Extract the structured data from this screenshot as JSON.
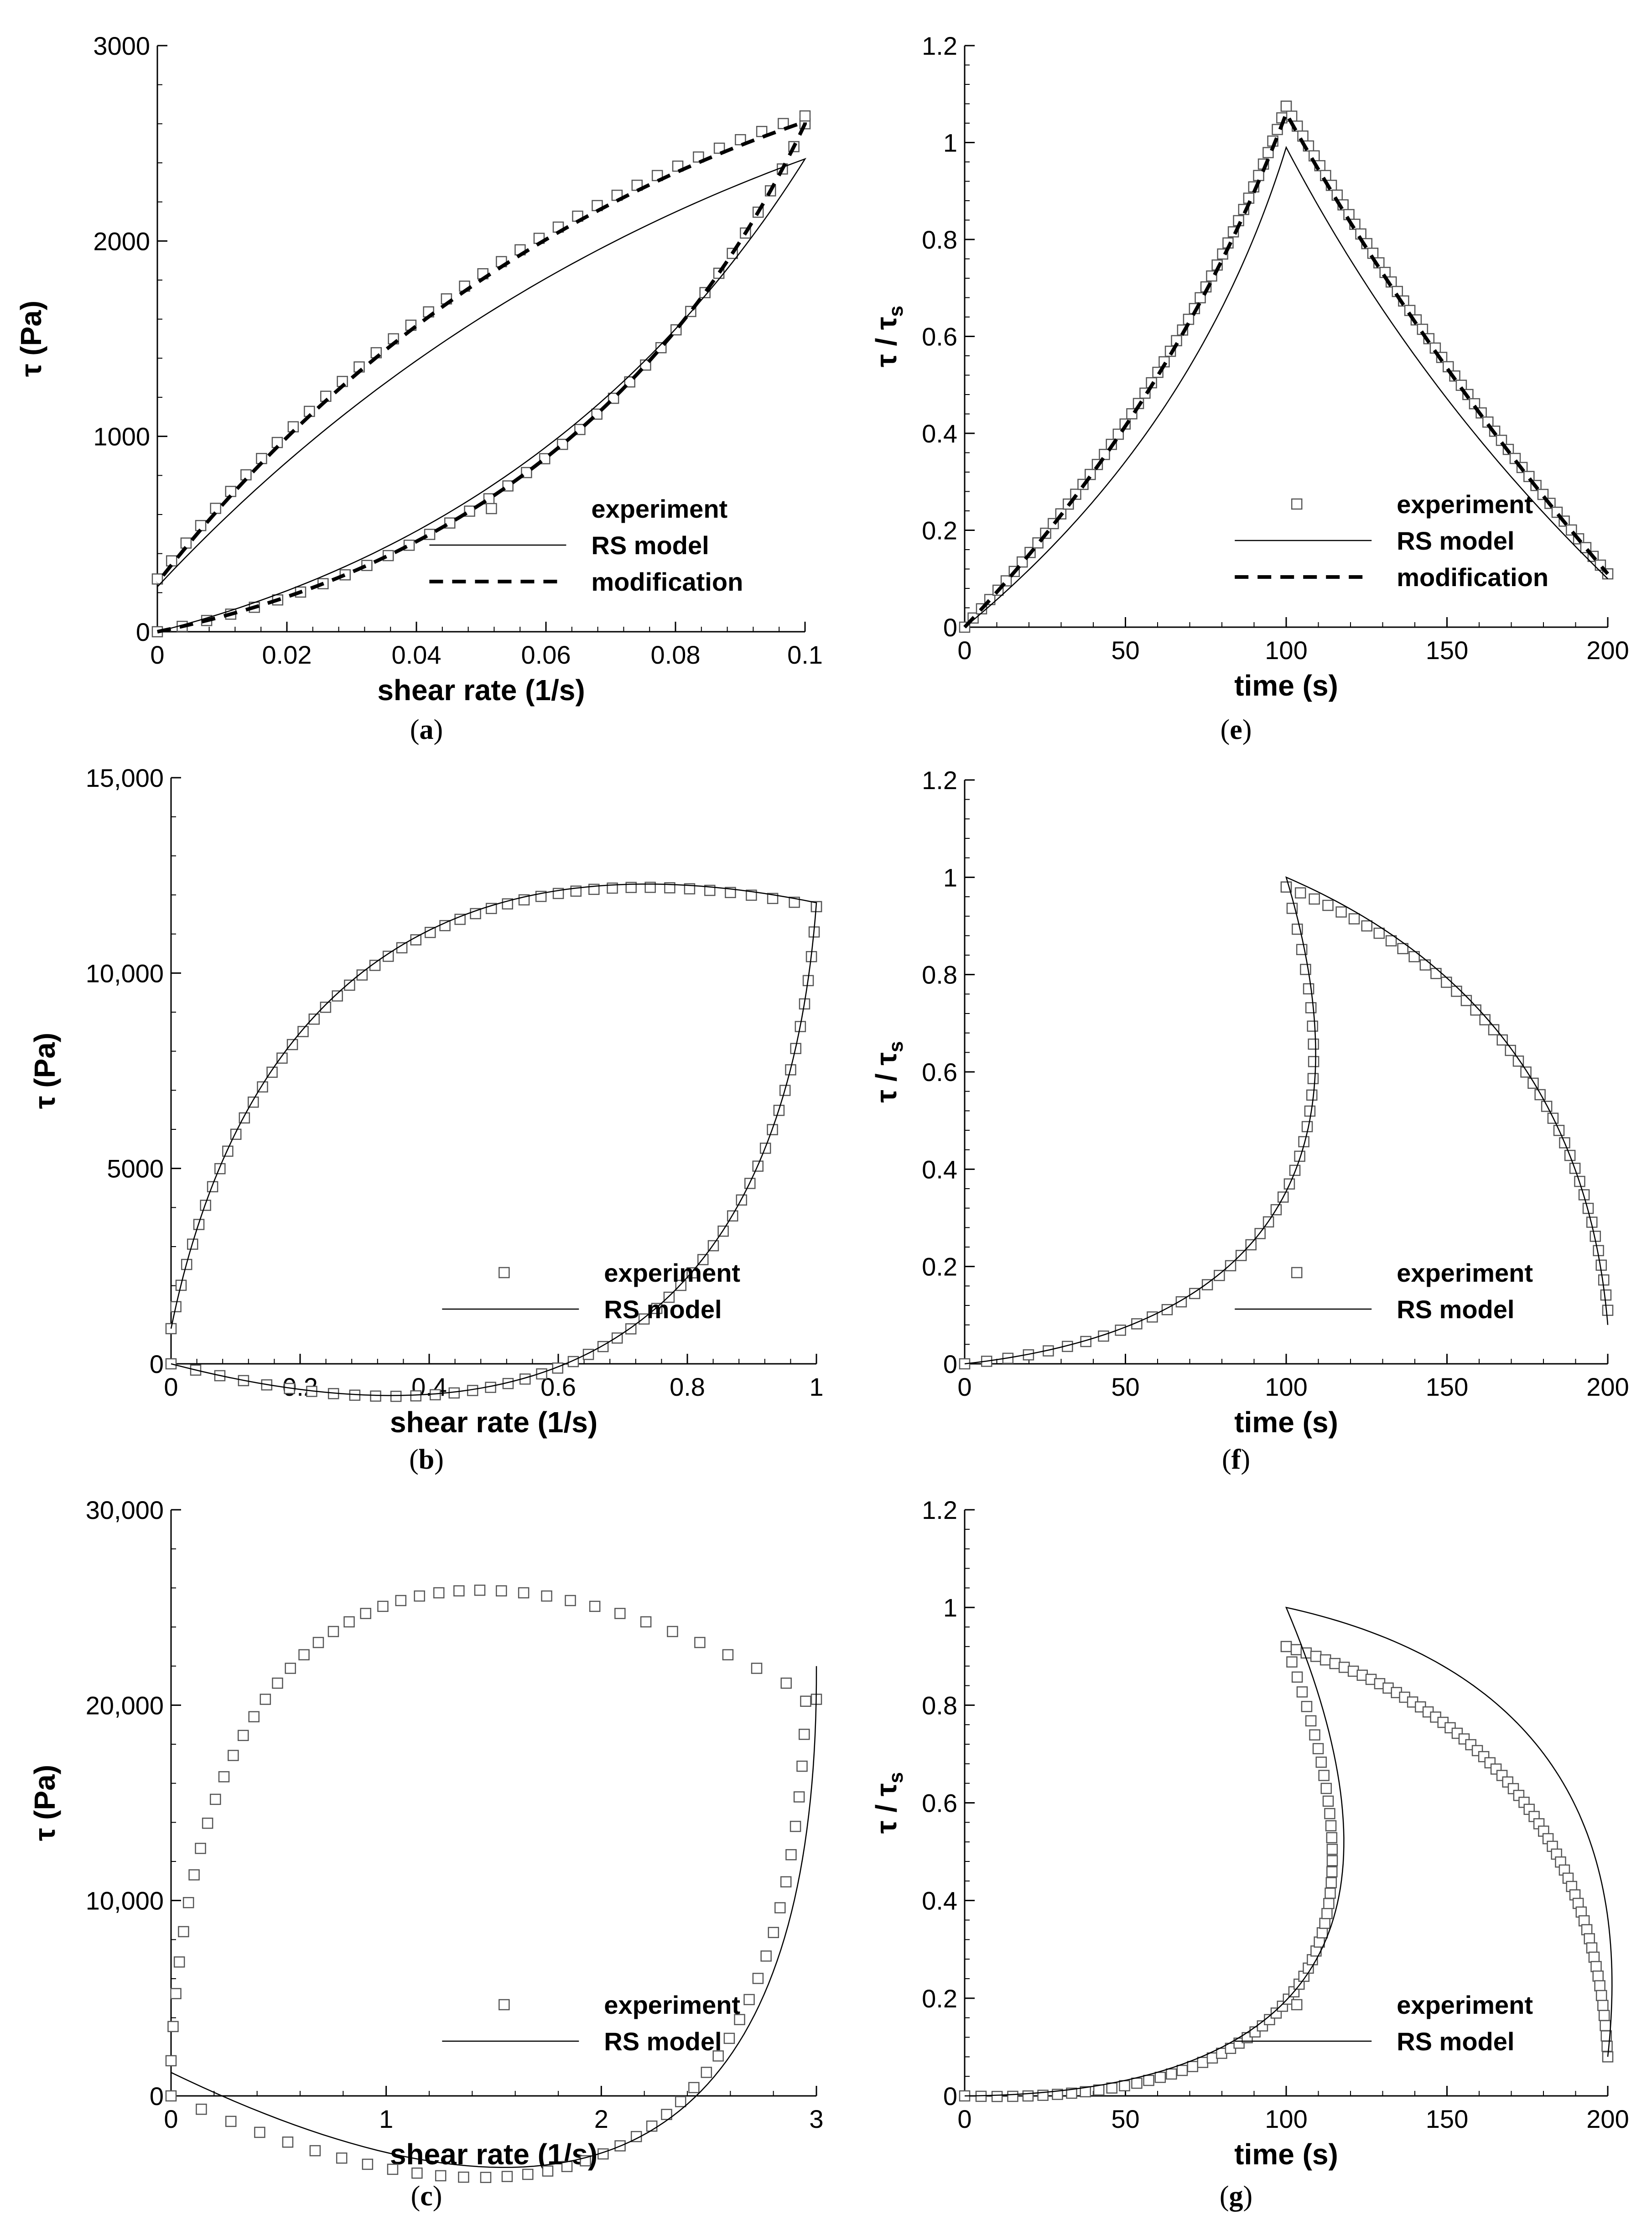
{
  "figure": {
    "legend_labels": {
      "experiment": "experiment",
      "rs_model": "RS model",
      "modification": "modification"
    }
  },
  "chart_data": [
    {
      "id": "a",
      "caption": "(a)",
      "type": "scatter",
      "xlabel": "shear rate (1/s)",
      "ylabel": "τ  (Pa)",
      "xlim": [
        0,
        0.1
      ],
      "ylim": [
        0,
        3000
      ],
      "xticks": [
        0,
        0.02,
        0.04,
        0.06,
        0.08,
        0.1
      ],
      "xtick_labels": [
        "0",
        "0.02",
        "0.04",
        "0.06",
        "0.08",
        "0.1"
      ],
      "yticks": [
        0,
        1000,
        2000,
        3000
      ],
      "ytick_labels": [
        "0",
        "1000",
        "2000",
        "3000"
      ],
      "legend": [
        "experiment",
        "RS model",
        "modification"
      ],
      "legend_position": "bottom-right",
      "series": [
        {
          "name": "experiment",
          "style": "square-marker",
          "up": [
            [
              0,
              0
            ],
            [
              0.1,
              2600
            ]
          ],
          "upCurv": 0.25,
          "down": [
            [
              0.1,
              2640
            ],
            [
              0,
              270
            ]
          ],
          "downCurv": 0.15,
          "n": 36
        },
        {
          "name": "RS model",
          "style": "thin-line",
          "up": [
            [
              0,
              0
            ],
            [
              0.1,
              2420
            ]
          ],
          "upCurv": 0.2,
          "down": [
            [
              0.1,
              2420
            ],
            [
              0,
              230
            ]
          ],
          "downCurv": 0.12
        },
        {
          "name": "modification",
          "style": "dashed-line",
          "up": [
            [
              0,
              0
            ],
            [
              0.1,
              2600
            ]
          ],
          "upCurv": 0.25,
          "down": [
            [
              0.1,
              2610
            ],
            [
              0,
              250
            ]
          ],
          "downCurv": 0.15
        }
      ]
    },
    {
      "id": "b",
      "caption": "(b)",
      "type": "scatter",
      "xlabel": "shear rate (1/s)",
      "ylabel": "τ  (Pa)",
      "xlim": [
        0,
        1
      ],
      "ylim": [
        0,
        15000
      ],
      "xticks": [
        0,
        0.2,
        0.4,
        0.6,
        0.8,
        1
      ],
      "xtick_labels": [
        "0",
        "0.2",
        "0.4",
        "0.6",
        "0.8",
        "1"
      ],
      "yticks": [
        0,
        5000,
        10000,
        15000
      ],
      "ytick_labels": [
        "0",
        "5000",
        "10,000",
        "15,000"
      ],
      "legend": [
        "experiment",
        "RS model"
      ],
      "legend_position": "bottom-right",
      "series": [
        {
          "name": "experiment",
          "style": "square-marker",
          "up": [
            [
              0,
              0
            ],
            [
              1,
              11700
            ]
          ],
          "upCurv": 0.6,
          "down": [
            [
              1,
              11700
            ],
            [
              0,
              900
            ]
          ],
          "downCurv": 0.5,
          "n": 48
        },
        {
          "name": "RS model",
          "style": "thin-line",
          "up": [
            [
              0,
              0
            ],
            [
              1,
              11800
            ]
          ],
          "upCurv": 0.6,
          "down": [
            [
              1,
              11800
            ],
            [
              0,
              900
            ]
          ],
          "downCurv": 0.5
        }
      ]
    },
    {
      "id": "c",
      "caption": "(c)",
      "type": "scatter",
      "xlabel": "shear rate (1/s)",
      "ylabel": "τ  (Pa)",
      "xlim": [
        0,
        3
      ],
      "ylim": [
        0,
        30000
      ],
      "xticks": [
        0,
        1,
        2,
        3
      ],
      "xtick_labels": [
        "0",
        "1",
        "2",
        "3"
      ],
      "yticks": [
        0,
        10000,
        20000,
        30000
      ],
      "ytick_labels": [
        "0",
        "10,000",
        "20,000",
        "30,000"
      ],
      "legend": [
        "experiment",
        "RS model"
      ],
      "legend_position": "bottom-right",
      "series": [
        {
          "name": "experiment",
          "style": "square-marker",
          "up": [
            [
              0,
              0
            ],
            [
              2.95,
              20200
            ]
          ],
          "upCurv": 0.75,
          "down": [
            [
              3,
              20300
            ],
            [
              0,
              1800
            ]
          ],
          "downCurv": 0.8,
          "n": 40
        },
        {
          "name": "RS model",
          "style": "thin-line",
          "up": [
            [
              0,
              1200
            ],
            [
              3,
              22000
            ]
          ],
          "upCurv": 0.8
        }
      ]
    },
    {
      "id": "e",
      "caption": "(e)",
      "type": "scatter",
      "xlabel": "time (s)",
      "ylabel": "τ / τ_s",
      "xlim": [
        0,
        200
      ],
      "ylim": [
        0,
        1.2
      ],
      "xticks": [
        0,
        50,
        100,
        150,
        200
      ],
      "xtick_labels": [
        "0",
        "50",
        "100",
        "150",
        "200"
      ],
      "yticks": [
        0,
        0.2,
        0.4,
        0.6,
        0.8,
        1,
        1.2
      ],
      "ytick_labels": [
        "0",
        "0.2",
        "0.4",
        "0.6",
        "0.8",
        "1",
        "1.2"
      ],
      "legend": [
        "experiment",
        "RS model",
        "modification"
      ],
      "legend_position": "bottom-right",
      "series": [
        {
          "name": "experiment",
          "style": "square-marker",
          "up": [
            [
              0,
              0
            ],
            [
              100,
              1.075
            ]
          ],
          "upCurv": 0.1,
          "down": [
            [
              100,
              1.075
            ],
            [
              200,
              0.11
            ]
          ],
          "downCurv": 0.05,
          "n": 50
        },
        {
          "name": "RS model",
          "style": "thin-line",
          "up": [
            [
              0,
              0
            ],
            [
              100,
              0.99
            ]
          ],
          "upCurv": 0.15,
          "down": [
            [
              100,
              0.99
            ],
            [
              200,
              0.1
            ]
          ],
          "downCurv": 0.08
        },
        {
          "name": "modification",
          "style": "dashed-line",
          "up": [
            [
              0,
              0
            ],
            [
              100,
              1.06
            ]
          ],
          "upCurv": 0.1,
          "down": [
            [
              100,
              1.06
            ],
            [
              200,
              0.11
            ]
          ],
          "downCurv": 0.05
        }
      ]
    },
    {
      "id": "f",
      "caption": "(f)",
      "type": "scatter",
      "xlabel": "time (s)",
      "ylabel": "τ / τ_s",
      "xlim": [
        0,
        200
      ],
      "ylim": [
        0,
        1.2
      ],
      "xticks": [
        0,
        50,
        100,
        150,
        200
      ],
      "xtick_labels": [
        "0",
        "50",
        "100",
        "150",
        "200"
      ],
      "yticks": [
        0,
        0.2,
        0.4,
        0.6,
        0.8,
        1,
        1.2
      ],
      "ytick_labels": [
        "0",
        "0.2",
        "0.4",
        "0.6",
        "0.8",
        "1",
        "1.2"
      ],
      "legend": [
        "experiment",
        "RS model"
      ],
      "legend_position": "bottom-right",
      "series": [
        {
          "name": "experiment",
          "style": "square-marker",
          "up": [
            [
              0,
              0
            ],
            [
              100,
              0.98
            ]
          ],
          "upCurv": 0.6,
          "down": [
            [
              100,
              0.98
            ],
            [
              200,
              0.11
            ]
          ],
          "downCurv": -0.3,
          "n": 40
        },
        {
          "name": "RS model",
          "style": "thin-line",
          "up": [
            [
              0,
              0
            ],
            [
              100,
              1.0
            ]
          ],
          "upCurv": 0.6,
          "down": [
            [
              100,
              1.0
            ],
            [
              200,
              0.08
            ]
          ],
          "downCurv": -0.3
        }
      ]
    },
    {
      "id": "g",
      "caption": "(g)",
      "type": "scatter",
      "xlabel": "time (s)",
      "ylabel": "τ / τ_s",
      "xlim": [
        0,
        200
      ],
      "ylim": [
        0,
        1.2
      ],
      "xticks": [
        0,
        50,
        100,
        150,
        200
      ],
      "xtick_labels": [
        "0",
        "50",
        "100",
        "150",
        "200"
      ],
      "yticks": [
        0,
        0.2,
        0.4,
        0.6,
        0.8,
        1,
        1.2
      ],
      "ytick_labels": [
        "0",
        "0.2",
        "0.4",
        "0.6",
        "0.8",
        "1",
        "1.2"
      ],
      "legend": [
        "experiment",
        "RS model"
      ],
      "legend_position": "bottom-right",
      "series": [
        {
          "name": "experiment",
          "style": "square-marker",
          "up": [
            [
              0,
              0
            ],
            [
              100,
              0.92
            ]
          ],
          "upCurv": 0.75,
          "down": [
            [
              100,
              0.92
            ],
            [
              200,
              0.08
            ]
          ],
          "downCurv": -0.35,
          "n": 60
        },
        {
          "name": "RS model",
          "style": "thin-line",
          "up": [
            [
              0,
              0
            ],
            [
              100,
              1.0
            ]
          ],
          "upCurv": 0.75,
          "down": [
            [
              100,
              1.0
            ],
            [
              200,
              0.08
            ]
          ],
          "downCurv": -0.45
        }
      ]
    }
  ]
}
